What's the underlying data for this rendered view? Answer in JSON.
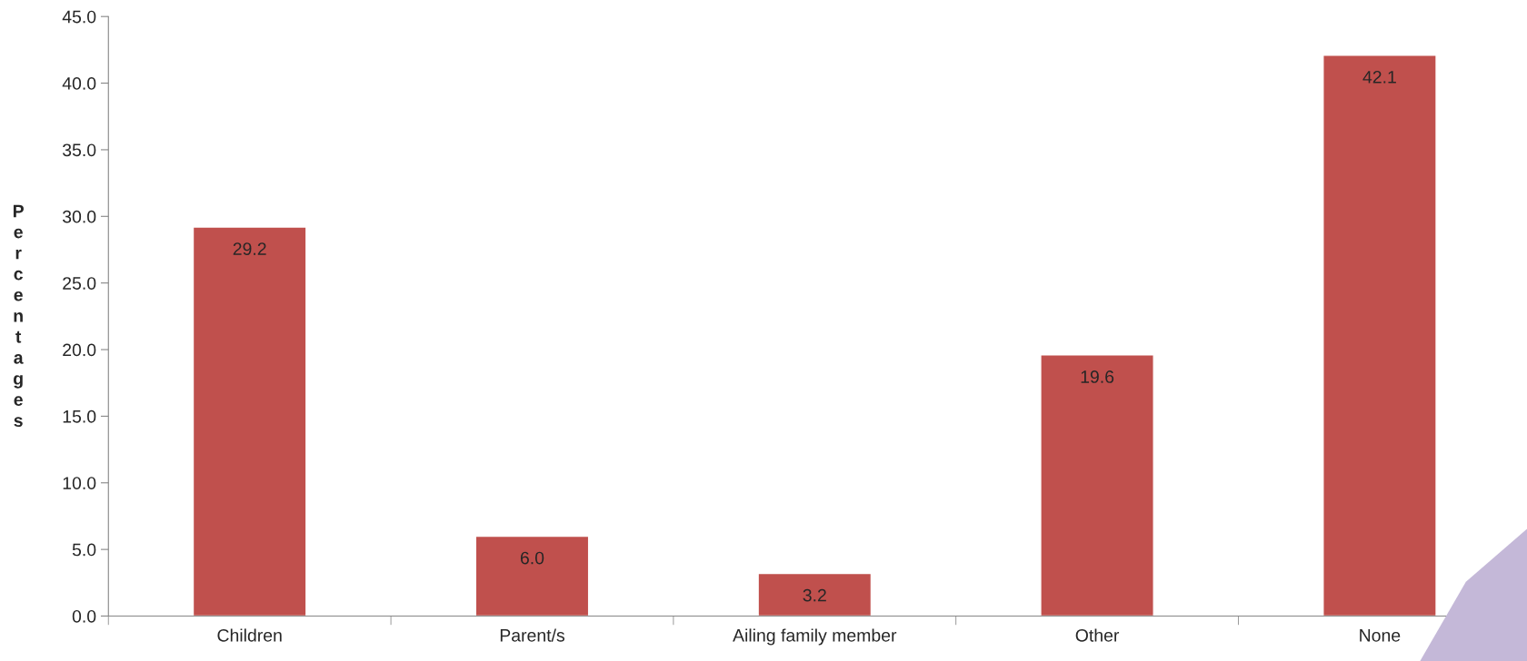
{
  "chart_data": {
    "type": "bar",
    "ylabel": "Percentages",
    "categories": [
      "Children",
      "Parent/s",
      "Ailing family member",
      "Other",
      "None"
    ],
    "values": [
      29.2,
      6.0,
      3.2,
      19.6,
      42.1
    ],
    "color": "#c0504d",
    "ylim": [
      0,
      45
    ],
    "yticks": [
      {
        "value": 0,
        "label": "0.0"
      },
      {
        "value": 5,
        "label": "5.0"
      },
      {
        "value": 10,
        "label": "10.0"
      },
      {
        "value": 15,
        "label": "15.0"
      },
      {
        "value": 20,
        "label": "20.0"
      },
      {
        "value": 25,
        "label": "25.0"
      },
      {
        "value": 30,
        "label": "30.0"
      },
      {
        "value": 35,
        "label": "35.0"
      },
      {
        "value": 40,
        "label": "40.0"
      },
      {
        "value": 45,
        "label": "45.0"
      }
    ],
    "value_labels": [
      "29.2",
      "6.0",
      "3.2",
      "19.6",
      "42.1"
    ],
    "grid": false,
    "legend": false
  }
}
